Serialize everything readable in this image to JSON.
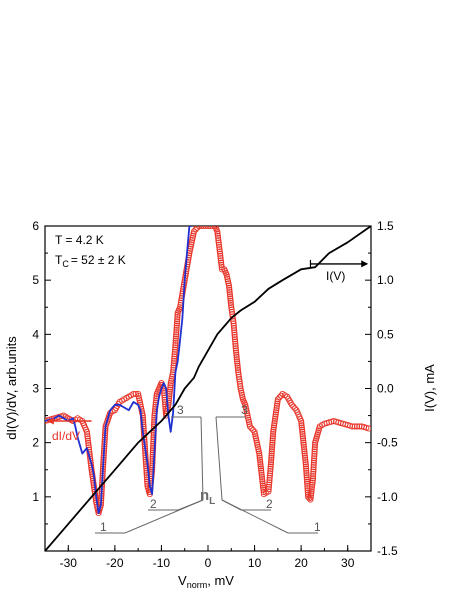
{
  "chart_data": {
    "type": "line",
    "title": "",
    "xlabel": "V",
    "xlabel_sub": "norm",
    "xlabel_unit": ", mV",
    "ylabel_left": "dI(V)/dV, arb.units",
    "ylabel_right": "I(V), mA",
    "xlim": [
      -35,
      35
    ],
    "ylim_left": [
      0,
      6
    ],
    "ylim_right": [
      -1.5,
      1.5
    ],
    "x_ticks": [
      -30,
      -20,
      -10,
      0,
      10,
      20,
      30
    ],
    "y_left_ticks": [
      1,
      2,
      3,
      4,
      5,
      6
    ],
    "y_right_ticks": [
      "1.5",
      "1.0",
      "0.5",
      "0.0",
      "-0.5",
      "-1.0",
      "-1.5"
    ],
    "y_right_tick_values": [
      1.5,
      1.0,
      0.5,
      0.0,
      -0.5,
      -1.0,
      -1.5
    ],
    "annotations": {
      "temperature": "T = 4.2 K",
      "tc_prefix": "T",
      "tc_sub": "C",
      "tc_value": "= 52 ± 2 K",
      "didv_arrow_label": "dI/dV",
      "iv_arrow_label": "I(V)",
      "nl_main": "n",
      "nl_sub": "L",
      "index_labels": [
        {
          "text": "1",
          "x": -23.5
        },
        {
          "text": "2",
          "x": -12.5
        },
        {
          "text": "3",
          "x": -7
        },
        {
          "text": "3",
          "x": 7
        },
        {
          "text": "2",
          "x": 13
        },
        {
          "text": "1",
          "x": 22
        }
      ]
    },
    "series": [
      {
        "label": "dI/dV",
        "axis": "left",
        "style": "open-circles",
        "color": "#e8352a",
        "x": [
          -35,
          -33,
          -31,
          -29,
          -28,
          -27,
          -26,
          -25,
          -24,
          -23.5,
          -23,
          -22.5,
          -22,
          -21,
          -20,
          -19,
          -18,
          -17,
          -16,
          -15,
          -14,
          -13,
          -12.5,
          -12,
          -11.5,
          -11,
          -10.5,
          -10,
          -9.5,
          -9,
          -8.5,
          -8,
          -7.5,
          -7,
          -6.5,
          -6,
          -5,
          -4,
          -3,
          -2,
          -1.5,
          -1,
          1,
          1.5,
          2,
          3,
          3.5,
          4,
          4.5,
          5,
          5.5,
          6,
          6.5,
          7,
          7.5,
          8,
          8.5,
          9,
          10,
          11,
          12,
          13,
          13.5,
          14,
          15,
          16,
          17,
          18,
          19,
          20,
          21,
          21.5,
          22,
          22.5,
          23,
          24,
          25,
          27,
          29,
          31,
          33,
          35
        ],
        "y": [
          2.4,
          2.45,
          2.5,
          2.4,
          2.45,
          2.4,
          2.2,
          1.5,
          0.9,
          0.7,
          0.85,
          1.6,
          2.3,
          2.55,
          2.6,
          2.75,
          2.8,
          2.85,
          2.9,
          2.9,
          2.5,
          1.2,
          1.05,
          1.5,
          2.5,
          2.9,
          3.0,
          3.1,
          3.0,
          2.5,
          2.7,
          3.1,
          3.3,
          3.8,
          4.4,
          4.5,
          5.0,
          5.5,
          5.9,
          6.0,
          6.0,
          6.0,
          6.0,
          6.0,
          5.9,
          5.2,
          5.2,
          5.1,
          4.9,
          4.5,
          4.2,
          3.7,
          3.3,
          3.0,
          2.8,
          2.7,
          2.5,
          2.3,
          2.2,
          1.8,
          1.05,
          1.1,
          1.6,
          2.2,
          2.8,
          2.9,
          2.85,
          2.7,
          2.6,
          2.4,
          1.6,
          1.0,
          0.95,
          1.3,
          2.0,
          2.3,
          2.35,
          2.4,
          2.35,
          2.3,
          2.3,
          2.25
        ]
      },
      {
        "label": "dI/dV (blue)",
        "axis": "left",
        "style": "line",
        "color": "#1f2fd0",
        "x": [
          -35,
          -33,
          -32,
          -31,
          -30,
          -29,
          -28.5,
          -28,
          -27,
          -26,
          -25,
          -24.5,
          -24,
          -23.5,
          -23,
          -22.5,
          -22,
          -21,
          -20,
          -19,
          -18,
          -17,
          -16,
          -15,
          -14.5,
          -14,
          -13,
          -12.5,
          -12,
          -11.5,
          -11,
          -10.5,
          -10,
          -9.5,
          -9,
          -8.5,
          -8,
          -7.5,
          -7,
          -6.5,
          -6,
          -5.5,
          -5,
          -4.5,
          -4,
          -3.5
        ],
        "y": [
          2.4,
          2.45,
          2.5,
          2.45,
          2.4,
          2.45,
          2.3,
          2.1,
          1.8,
          1.9,
          1.6,
          1.4,
          1.0,
          0.7,
          0.85,
          1.6,
          2.3,
          2.6,
          2.7,
          2.7,
          2.65,
          2.6,
          2.75,
          2.7,
          2.6,
          2.2,
          1.6,
          1.2,
          1.05,
          1.8,
          2.6,
          2.85,
          3.0,
          3.1,
          3.0,
          2.5,
          2.2,
          2.55,
          3.3,
          3.5,
          3.9,
          4.3,
          5.0,
          5.5,
          6.0,
          6.0
        ]
      },
      {
        "label": "I(V)",
        "axis": "right",
        "style": "line",
        "color": "#000000",
        "x": [
          -35,
          -30,
          -25,
          -20,
          -15,
          -10,
          -7,
          -5,
          -3,
          -2,
          0,
          2,
          3,
          5,
          7,
          10,
          13,
          16,
          20,
          23,
          26,
          30,
          35
        ],
        "y": [
          -1.5,
          -1.25,
          -1.0,
          -0.75,
          -0.5,
          -0.3,
          -0.15,
          0.0,
          0.1,
          0.2,
          0.35,
          0.5,
          0.55,
          0.65,
          0.72,
          0.8,
          0.92,
          1.0,
          1.1,
          1.12,
          1.25,
          1.35,
          1.5
        ]
      }
    ]
  }
}
